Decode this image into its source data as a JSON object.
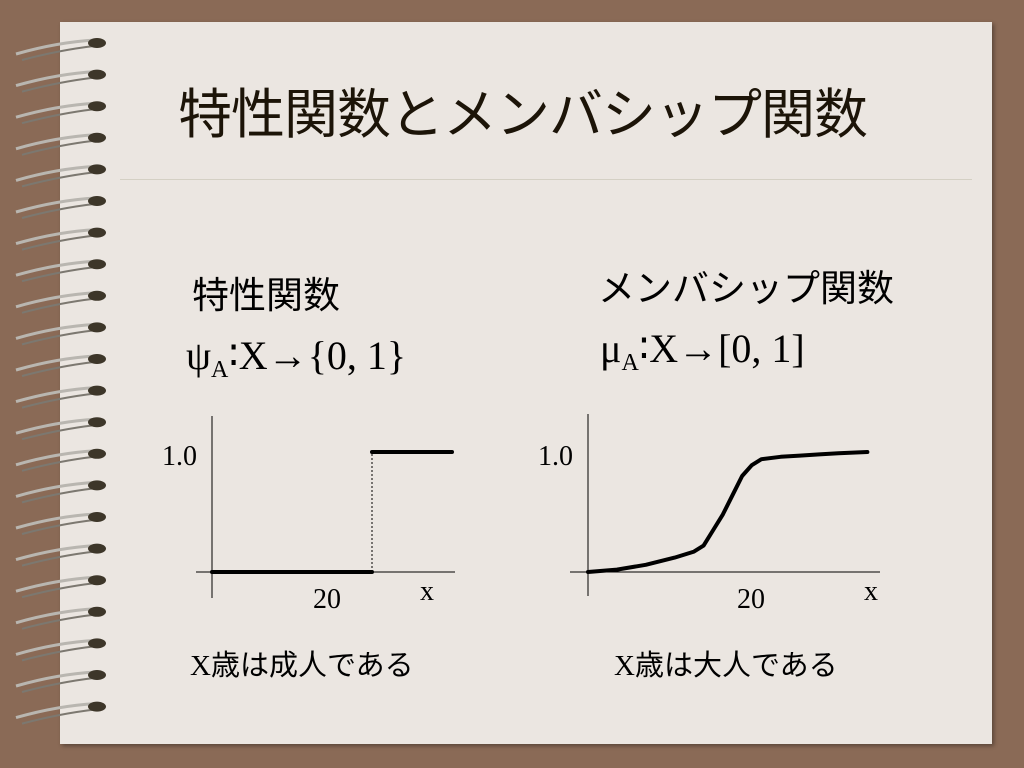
{
  "slide": {
    "title": "特性関数とメンバシップ関数",
    "left": {
      "heading": "特性関数",
      "formula_symbol": "ψ",
      "formula_sub": "A",
      "formula_rest": "∶X→{0, 1}",
      "caption_x": "X",
      "caption_text": "歳は成人である"
    },
    "right": {
      "heading": "メンバシップ関数",
      "formula_symbol": "μ",
      "formula_sub": "A",
      "formula_rest": "∶X→[0, 1]",
      "caption_x": "X",
      "caption_text": "歳は大人である"
    }
  },
  "colors": {
    "background": "#8a6a56",
    "paper": "#ebe6e1",
    "title": "#1c1408",
    "curve": "#000000"
  },
  "chart_data": [
    {
      "type": "line",
      "name": "characteristic-function",
      "y_tick_label": "1.0",
      "x_tick_label": "20",
      "x_axis_label": "x",
      "xlim": [
        0,
        30
      ],
      "ylim": [
        0,
        1.2
      ],
      "series": [
        {
          "x": [
            0,
            20
          ],
          "y": [
            0,
            0
          ]
        },
        {
          "x": [
            20,
            30
          ],
          "y": [
            1,
            1
          ]
        }
      ],
      "step_at": 20
    },
    {
      "type": "line",
      "name": "membership-function",
      "y_tick_label": "1.0",
      "x_tick_label": "20",
      "x_axis_label": "x",
      "xlim": [
        0,
        30
      ],
      "ylim": [
        0,
        1.2
      ],
      "series": [
        {
          "x": [
            0,
            3,
            6,
            9,
            11,
            12,
            13,
            14,
            15,
            16,
            17,
            18,
            20,
            22,
            24,
            26,
            29
          ],
          "y": [
            0,
            0.02,
            0.06,
            0.12,
            0.17,
            0.22,
            0.35,
            0.48,
            0.64,
            0.8,
            0.89,
            0.94,
            0.96,
            0.97,
            0.98,
            0.99,
            1.0
          ]
        }
      ]
    }
  ]
}
